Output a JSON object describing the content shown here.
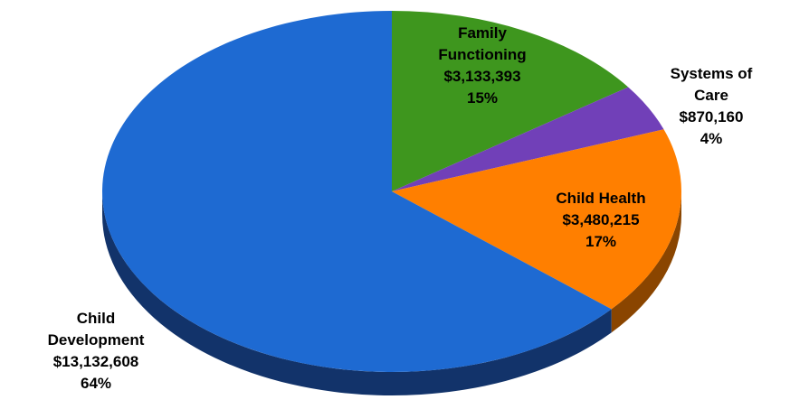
{
  "chart_data": {
    "type": "pie",
    "style": "3d",
    "slices": [
      {
        "label_lines": [
          "Family",
          "Functioning"
        ],
        "amount": "$3,133,393",
        "percent_label": "15%",
        "value": 3133393,
        "color": "#3E961E",
        "side_color": "#25611A"
      },
      {
        "label_lines": [
          "Systems of",
          "Care"
        ],
        "amount": "$870,160",
        "percent_label": "4%",
        "value": 870160,
        "color": "#7140B8",
        "side_color": "#4A2A80"
      },
      {
        "label_lines": [
          "Child Health"
        ],
        "amount": "$3,480,215",
        "percent_label": "17%",
        "value": 3480215,
        "color": "#FF7F00",
        "side_color": "#8A4500"
      },
      {
        "label_lines": [
          "Child",
          "Development"
        ],
        "amount": "$13,132,608",
        "percent_label": "64%",
        "value": 13132608,
        "color": "#1E6AD2",
        "side_color": "#12336A"
      }
    ]
  }
}
